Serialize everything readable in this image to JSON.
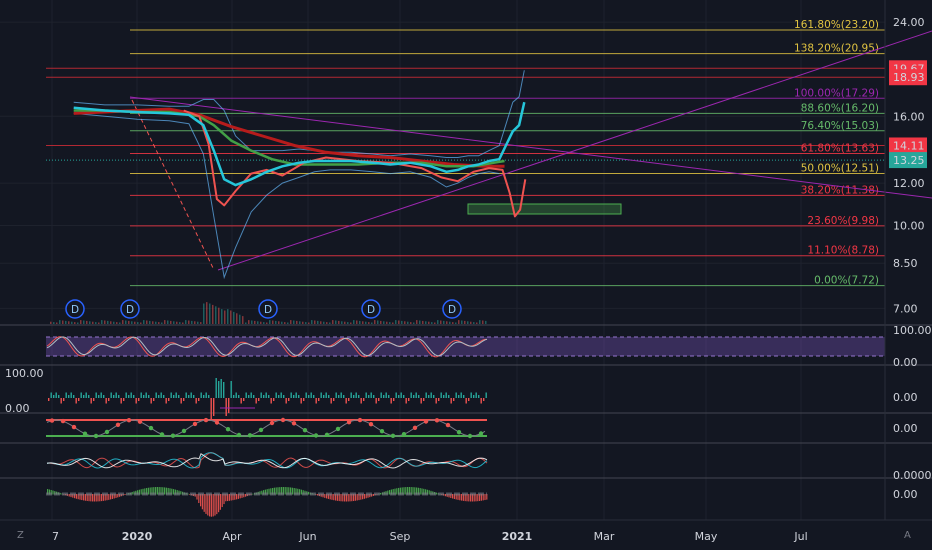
{
  "chart_data": {
    "type": "line",
    "symbol_markers": [
      "D",
      "D",
      "D",
      "D",
      "D"
    ],
    "main_axis": {
      "ticks": [
        "24.00",
        "19.67",
        "18.93",
        "16.00",
        "14.11",
        "13.25",
        "12.00",
        "10.00",
        "8.50",
        "7.00"
      ],
      "ticks_numeric": [
        24.0,
        16.0,
        12.0,
        10.0,
        8.5,
        7.0
      ],
      "scale": "log",
      "range": [
        6.6,
        25.5
      ]
    },
    "price_tags": [
      {
        "value": 19.67,
        "label": "19.67",
        "color": "#f23645"
      },
      {
        "value": 18.93,
        "label": "18.93",
        "color": "#f23645"
      },
      {
        "value": 14.11,
        "label": "14.11",
        "color": "#f23645"
      },
      {
        "value": 13.25,
        "label": "13.25",
        "color": "#26a69a"
      }
    ],
    "fibonacci_levels": [
      {
        "label": "161.80%(23.20)",
        "value": 23.2,
        "color": "#e0c341"
      },
      {
        "label": "138.20%(20.95)",
        "value": 20.95,
        "color": "#e0c341"
      },
      {
        "label": "100.00%(17.29)",
        "value": 17.29,
        "color": "#9c27b0"
      },
      {
        "label": "88.60%(16.20)",
        "value": 16.2,
        "color": "#66bb6a"
      },
      {
        "label": "76.40%(15.03)",
        "value": 15.03,
        "color": "#66bb6a"
      },
      {
        "label": "61.80%(13.63)",
        "value": 13.63,
        "color": "#f23645"
      },
      {
        "label": "50.00%(12.51)",
        "value": 12.51,
        "color": "#e0c341"
      },
      {
        "label": "38.20%(11.38)",
        "value": 11.38,
        "color": "#f23645"
      },
      {
        "label": "23.60%(9.98)",
        "value": 9.98,
        "color": "#f23645"
      },
      {
        "label": "11.10%(8.78)",
        "value": 8.78,
        "color": "#f23645"
      },
      {
        "label": "0.00%(7.72)",
        "value": 7.72,
        "color": "#66bb6a"
      }
    ],
    "x_axis": {
      "labels": [
        "7",
        "2020",
        "Apr",
        "Jun",
        "Sep",
        "2021",
        "Mar",
        "May",
        "Jul"
      ]
    },
    "series": [
      {
        "color": "#26c6da",
        "x": [
          "2019-11-01",
          "2019-12-01",
          "2020-01-01",
          "2020-02-01",
          "2020-02-20",
          "2020-03-05",
          "2020-03-15",
          "2020-03-25",
          "2020-04-05",
          "2020-04-20",
          "2020-05-05",
          "2020-05-20",
          "2020-06-05",
          "2020-06-20",
          "2020-07-05",
          "2020-07-25",
          "2020-08-15",
          "2020-09-01",
          "2020-09-20",
          "2020-10-10",
          "2020-10-25",
          "2020-11-05",
          "2020-11-15",
          "2020-11-25",
          "2020-12-05",
          "2020-12-15",
          "2020-12-22",
          "2020-12-28",
          "2021-01-03",
          "2021-01-08"
        ],
        "values": [
          16.6,
          16.4,
          16.3,
          16.2,
          16.1,
          15.4,
          13.8,
          12.2,
          11.9,
          12.2,
          12.6,
          12.9,
          13.1,
          13.2,
          13.2,
          13.2,
          13.1,
          13.0,
          13.1,
          12.9,
          12.6,
          12.7,
          12.9,
          13.0,
          13.2,
          13.3,
          14.2,
          15.0,
          15.4,
          17.0
        ]
      },
      {
        "color": "#43a047",
        "x": [
          "2019-11-01",
          "2019-12-01",
          "2020-01-01",
          "2020-02-01",
          "2020-03-01",
          "2020-03-15",
          "2020-04-01",
          "2020-04-20",
          "2020-05-10",
          "2020-06-01",
          "2020-07-01",
          "2020-08-01",
          "2020-09-01",
          "2020-10-01",
          "2020-10-25",
          "2020-11-20",
          "2020-12-10",
          "2020-12-20"
        ],
        "values": [
          16.4,
          16.4,
          16.3,
          16.3,
          16.0,
          15.4,
          14.4,
          13.8,
          13.3,
          13.0,
          13.0,
          13.0,
          13.1,
          13.1,
          12.9,
          12.9,
          13.1,
          13.2
        ]
      },
      {
        "color": "#b71c1c",
        "x": [
          "2019-11-01",
          "2019-12-01",
          "2020-01-01",
          "2020-02-01",
          "2020-03-01",
          "2020-04-01",
          "2020-05-01",
          "2020-06-01",
          "2020-07-01",
          "2020-08-01",
          "2020-09-01",
          "2020-10-01",
          "2020-11-01",
          "2020-12-01",
          "2020-12-20"
        ],
        "values": [
          16.2,
          16.3,
          16.4,
          16.5,
          16.1,
          15.3,
          14.7,
          14.1,
          13.7,
          13.5,
          13.4,
          13.2,
          13.0,
          12.9,
          12.9
        ]
      },
      {
        "color": "#ef5350",
        "x": [
          "2020-02-15",
          "2020-03-01",
          "2020-03-10",
          "2020-03-18",
          "2020-03-25",
          "2020-04-05",
          "2020-04-20",
          "2020-05-05",
          "2020-05-20",
          "2020-06-10",
          "2020-07-01",
          "2020-08-01",
          "2020-09-01",
          "2020-10-01",
          "2020-10-20",
          "2020-11-05",
          "2020-11-20",
          "2020-12-05",
          "2020-12-18",
          "2020-12-25",
          "2020-12-30",
          "2021-01-04",
          "2021-01-09"
        ],
        "values": [
          16.4,
          16.0,
          14.2,
          11.2,
          10.9,
          11.6,
          12.5,
          12.7,
          12.4,
          13.1,
          13.4,
          13.2,
          13.1,
          12.8,
          12.3,
          12.1,
          12.6,
          12.8,
          12.7,
          11.5,
          10.4,
          10.7,
          12.2
        ]
      }
    ],
    "oscillator_panels": [
      {
        "name": "stochastic",
        "ticks": [
          "100.00",
          "0.00"
        ],
        "range": [
          0,
          100
        ]
      },
      {
        "name": "volume-oscillator",
        "ticks_left": [
          "100.00",
          "0.00"
        ],
        "ticks": [
          "0.00"
        ]
      },
      {
        "name": "dots-oscillator",
        "ticks": [
          "0.00"
        ]
      },
      {
        "name": "multi-line-oscillator",
        "ticks": [
          "0.0000"
        ]
      },
      {
        "name": "histogram-oscillator",
        "ticks": [
          "0.00"
        ]
      }
    ],
    "legend": "none",
    "grid": true
  },
  "toolbar": {
    "zoom_label": "Z",
    "auto_label": "A"
  },
  "colors": {
    "background": "#131722",
    "grid": "#1e222d",
    "axis_text": "#d1d4dc",
    "up": "#26a69a",
    "down": "#ef5350",
    "purple": "#9c27b0",
    "yellow": "#e0c341"
  }
}
